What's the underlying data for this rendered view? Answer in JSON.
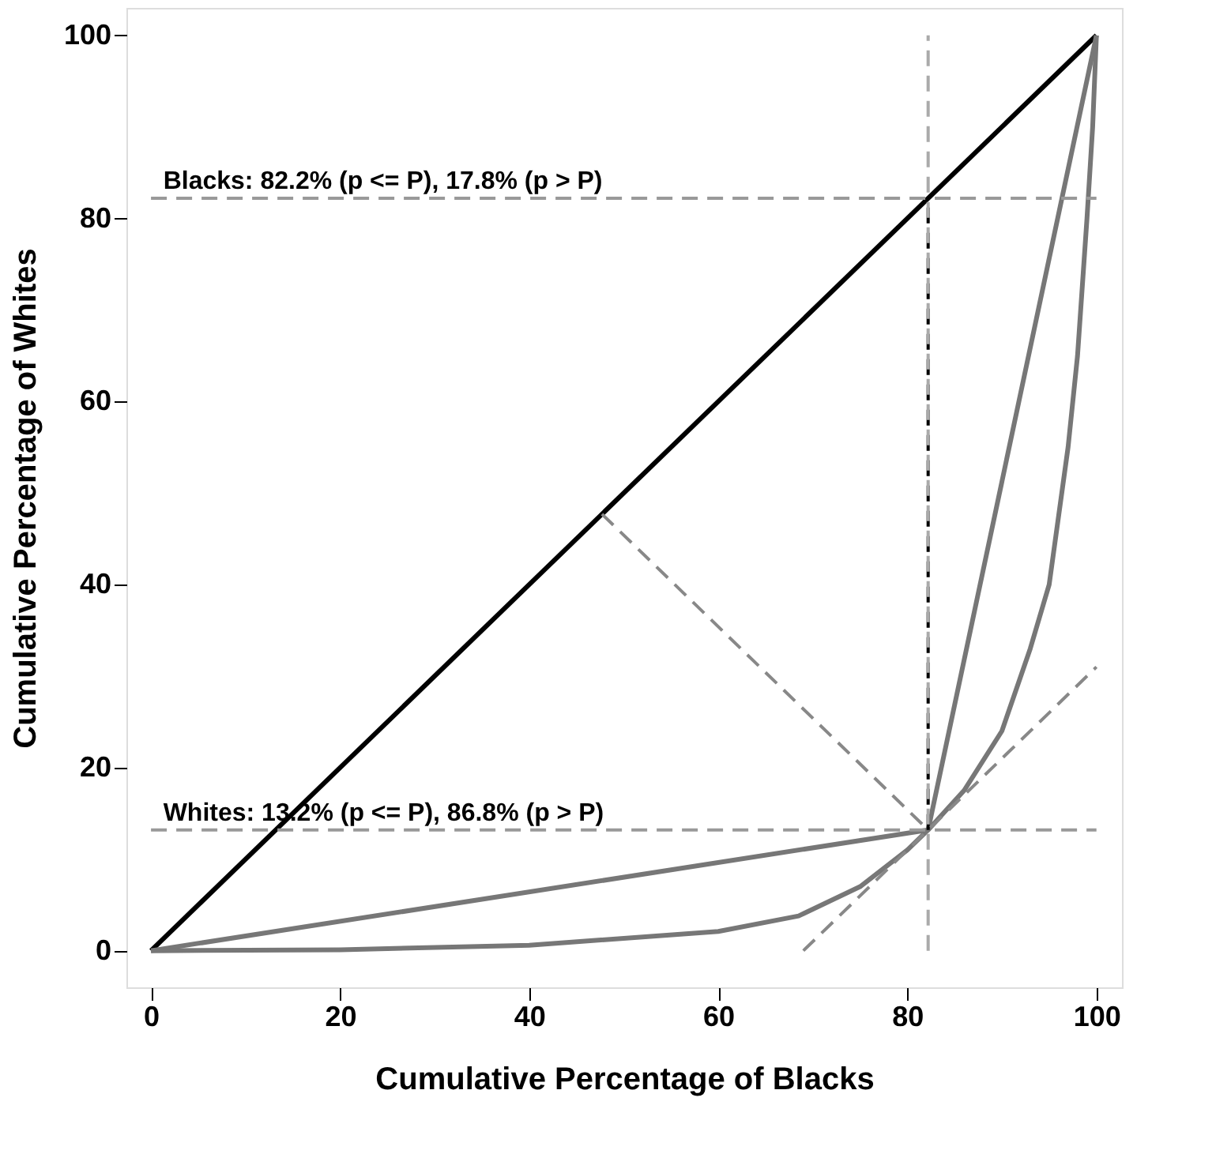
{
  "chart_data": {
    "type": "line",
    "xlabel": "Cumulative Percentage of Blacks",
    "ylabel": "Cumulative Percentage of Whites",
    "xlim": [
      -2.6,
      102.7
    ],
    "ylim": [
      -4,
      103
    ],
    "xticks": [
      0,
      20,
      40,
      60,
      80,
      100
    ],
    "yticks": [
      0,
      20,
      40,
      60,
      80,
      100
    ],
    "grid": false,
    "marker": "none",
    "series": [
      {
        "color": "#000000",
        "line_style": "solid",
        "x": [
          0,
          100
        ],
        "values": [
          0,
          100
        ]
      },
      {
        "color": "#777777",
        "line_style": "solid",
        "x": [
          0,
          82.2,
          100
        ],
        "values": [
          0,
          13.2,
          100
        ]
      },
      {
        "color": "#777777",
        "line_style": "solid",
        "x": [
          0,
          20,
          40,
          60,
          68.5,
          75,
          80,
          82.2,
          86,
          90,
          93,
          95,
          97,
          98,
          99,
          99.6,
          100
        ],
        "values": [
          0,
          0.1,
          0.6,
          2.1,
          3.8,
          7,
          11,
          13.2,
          17.5,
          24,
          33,
          40,
          55,
          65,
          80,
          90,
          100
        ]
      },
      {
        "color": "#000000",
        "line_style": "dashed",
        "x": [
          82.2,
          82.2
        ],
        "values": [
          13.2,
          82.2
        ]
      },
      {
        "color": "#888888",
        "line_style": "dashed",
        "x": [
          47.7,
          82.2
        ],
        "values": [
          47.7,
          13.2
        ]
      },
      {
        "color": "#888888",
        "line_style": "dashed",
        "x": [
          69,
          100
        ],
        "values": [
          0,
          31
        ]
      }
    ],
    "ref_lines": [
      {
        "axis": "y",
        "value": 82.2,
        "label": "Blacks: 82.2% (p <= P), 17.8% (p > P)",
        "color": "#999999",
        "line_style": "dashed"
      },
      {
        "axis": "y",
        "value": 13.2,
        "label": "Whites: 13.2% (p <= P), 86.8% (p > P)",
        "color": "#999999",
        "line_style": "dashed"
      },
      {
        "axis": "x",
        "value": 82.2,
        "color": "#aaaaaa",
        "line_style": "dashed"
      }
    ]
  }
}
